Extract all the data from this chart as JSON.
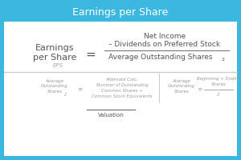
{
  "title": "Earnings per Share",
  "title_bg": "#3cb8e0",
  "title_color": "white",
  "body_bg": "white",
  "border_color": "#3cb8e0",
  "main_label_line1": "Earnings",
  "main_label_line2": "per Share",
  "main_sublabel": "EPS",
  "equals": "=",
  "numerator_line1": "Net Income",
  "numerator_line2": "– Dividends on Preferred Stock",
  "denominator": "Average Outstanding Shares",
  "denom_subscript": "2",
  "valuation_label": "Valuation",
  "text_color_main": "#555555",
  "text_color_bottom": "#999999",
  "text_color_eps": "#aaaaaa",
  "sep_color": "#cccccc",
  "frac_color": "#777777"
}
